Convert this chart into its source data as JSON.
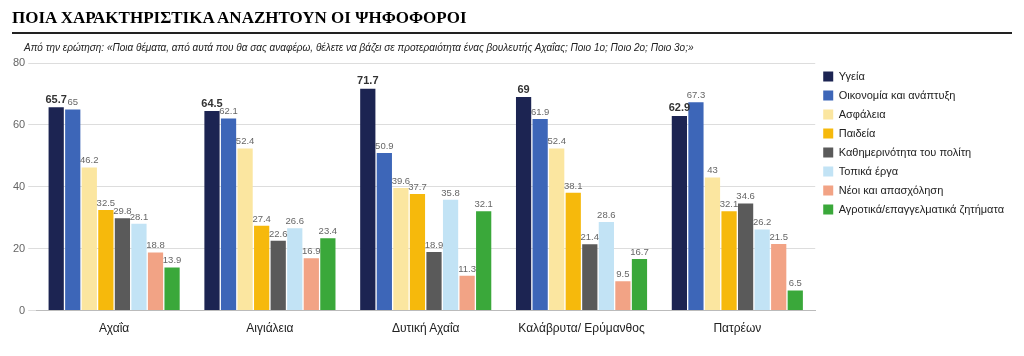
{
  "chart_data": {
    "type": "bar",
    "title": "ΠΟΙΑ ΧΑΡΑΚΤΗΡΙΣΤΙΚΑ ΑΝΑΖΗΤΟΥΝ ΟΙ ΨΗΦΟΦΟΡΟΙ",
    "subtitle": "Από την ερώτηση: «Ποια θέματα, από αυτά που θα σας αναφέρω, θέλετε να βάζει σε προτεραιότητα ένας βουλευτής Αχαΐας; Ποιο 1ο; Ποιο 2ο; Ποιο 3ο;»",
    "categories": [
      "Αχαΐα",
      "Αιγιάλεια",
      "Δυτική Αχαΐα",
      "Καλάβρυτα/ Ερύμανθος",
      "Πατρέων"
    ],
    "series": [
      {
        "name": "Υγεία",
        "color": "#1c2452",
        "values": [
          65.7,
          64.5,
          71.7,
          69,
          62.9
        ]
      },
      {
        "name": "Οικονομία και ανάπτυξη",
        "color": "#3d66b8",
        "values": [
          65,
          62.1,
          50.9,
          61.9,
          67.3
        ]
      },
      {
        "name": "Ασφάλεια",
        "color": "#fbe6a0",
        "values": [
          46.2,
          52.4,
          39.6,
          52.4,
          43
        ]
      },
      {
        "name": "Παιδεία",
        "color": "#f6b90c",
        "values": [
          32.5,
          27.4,
          37.7,
          38.1,
          32.1
        ]
      },
      {
        "name": "Καθημερινότητα του πολίτη",
        "color": "#5a5a5a",
        "values": [
          29.8,
          22.6,
          18.9,
          21.4,
          34.6
        ]
      },
      {
        "name": "Τοπικά έργα",
        "color": "#c2e3f5",
        "values": [
          28.1,
          26.6,
          35.8,
          28.6,
          26.2
        ]
      },
      {
        "name": "Νέοι και απασχόληση",
        "color": "#f2a385",
        "values": [
          18.8,
          16.9,
          11.3,
          9.5,
          21.5
        ]
      },
      {
        "name": "Αγροτικά/επαγγελματικά ζητήματα",
        "color": "#3aa83a",
        "values": [
          13.9,
          23.4,
          32.1,
          16.7,
          6.5
        ]
      }
    ],
    "ylim": [
      0,
      80
    ],
    "yticks": [
      0,
      20,
      40,
      60,
      80
    ],
    "grid": "y",
    "legend": "top right",
    "data_labels": true
  }
}
